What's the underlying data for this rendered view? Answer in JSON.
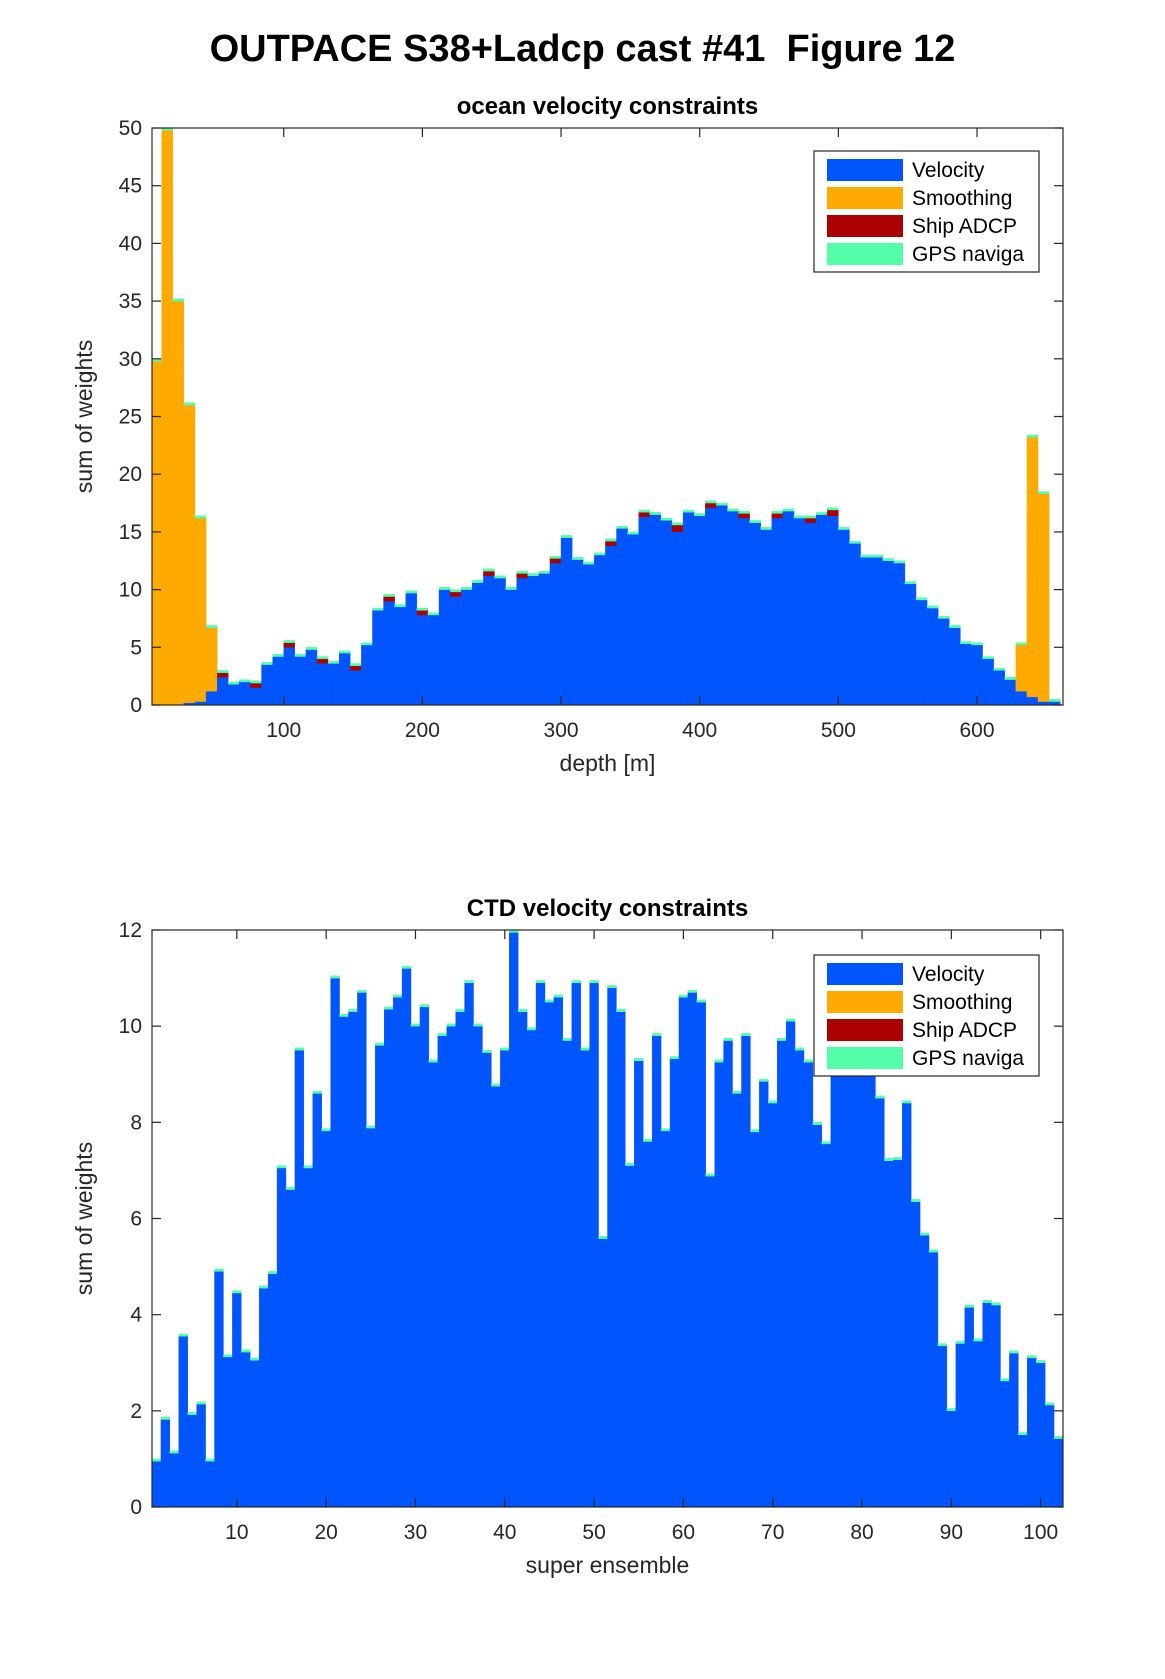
{
  "figure": {
    "title": "OUTPACE S38+Ladcp cast #41  Figure 12"
  },
  "colors": {
    "velocity": "#0055FF",
    "smoothing": "#FFAA00",
    "ship_adcp": "#AA0000",
    "gps": "#55FFAA"
  },
  "chart_data": [
    {
      "type": "bar",
      "stacked": true,
      "title": "ocean velocity constraints",
      "xlabel": "depth [m]",
      "ylabel": "sum of weights",
      "xlim": [
        5,
        662
      ],
      "ylim": [
        0,
        50
      ],
      "xticks": [
        100,
        200,
        300,
        400,
        500,
        600
      ],
      "yticks": [
        0,
        5,
        10,
        15,
        20,
        25,
        30,
        35,
        40,
        45,
        50
      ],
      "bin_width": 8,
      "x": [
        8,
        16,
        24,
        32,
        40,
        48,
        56,
        64,
        72,
        80,
        88,
        96,
        104,
        112,
        120,
        128,
        136,
        144,
        152,
        160,
        168,
        176,
        184,
        192,
        200,
        208,
        216,
        224,
        232,
        240,
        248,
        256,
        264,
        272,
        280,
        288,
        296,
        304,
        312,
        320,
        328,
        336,
        344,
        352,
        360,
        368,
        376,
        384,
        392,
        400,
        408,
        416,
        424,
        432,
        440,
        448,
        456,
        464,
        472,
        480,
        488,
        496,
        504,
        512,
        520,
        528,
        536,
        544,
        552,
        560,
        568,
        576,
        584,
        592,
        600,
        608,
        616,
        624,
        632,
        640,
        648,
        656
      ],
      "legend": {
        "position": "top-right",
        "entries": [
          "Velocity",
          "Smoothing",
          "Ship ADCP",
          "GPS naviga"
        ]
      },
      "series": [
        {
          "name": "Velocity",
          "values": [
            0,
            0,
            0,
            0.2,
            0.3,
            1.2,
            2.4,
            1.8,
            2.0,
            1.5,
            3.5,
            4.2,
            5.0,
            4.2,
            4.8,
            3.6,
            3.6,
            4.5,
            3.0,
            5.2,
            8.2,
            9.0,
            8.5,
            9.7,
            7.8,
            7.8,
            10.0,
            9.4,
            10.0,
            10.6,
            11.2,
            11.0,
            10.0,
            11.0,
            11.2,
            11.4,
            12.3,
            14.5,
            12.6,
            12.2,
            13.0,
            13.8,
            15.3,
            14.8,
            16.3,
            16.5,
            16.0,
            15.0,
            16.7,
            16.4,
            17.1,
            17.3,
            16.8,
            16.2,
            15.8,
            15.2,
            16.2,
            16.8,
            16.2,
            15.8,
            16.5,
            16.4,
            15.2,
            14.0,
            12.8,
            12.8,
            12.5,
            12.3,
            10.5,
            9.1,
            8.4,
            7.5,
            6.7,
            5.3,
            5.2,
            4.0,
            3.0,
            2.2,
            1.2,
            0.7,
            0.3,
            0.3
          ]
        },
        {
          "name": "Smoothing",
          "values": [
            29.8,
            49.8,
            35.0,
            25.8,
            15.9,
            5.5,
            0,
            0,
            0,
            0,
            0,
            0,
            0,
            0,
            0,
            0,
            0,
            0,
            0,
            0,
            0,
            0,
            0,
            0,
            0,
            0,
            0,
            0,
            0,
            0,
            0,
            0,
            0,
            0,
            0,
            0,
            0,
            0,
            0,
            0,
            0,
            0,
            0,
            0,
            0,
            0,
            0,
            0,
            0,
            0,
            0,
            0,
            0,
            0,
            0,
            0,
            0,
            0,
            0,
            0,
            0,
            0,
            0,
            0,
            0,
            0,
            0,
            0,
            0,
            0,
            0,
            0,
            0,
            0,
            0,
            0,
            0,
            0,
            4.0,
            22.5,
            18.0,
            0
          ]
        },
        {
          "name": "Ship ADCP",
          "values": [
            0,
            0,
            0,
            0,
            0,
            0,
            0.4,
            0,
            0,
            0.4,
            0,
            0,
            0.4,
            0,
            0,
            0.4,
            0,
            0,
            0.4,
            0,
            0,
            0.4,
            0,
            0,
            0.4,
            0,
            0,
            0.4,
            0,
            0,
            0.4,
            0,
            0,
            0.4,
            0,
            0,
            0.4,
            0,
            0,
            0,
            0,
            0.4,
            0,
            0,
            0.4,
            0,
            0,
            0.6,
            0,
            0,
            0.4,
            0,
            0,
            0.4,
            0,
            0,
            0.4,
            0,
            0,
            0.4,
            0,
            0.5,
            0,
            0,
            0,
            0,
            0,
            0,
            0,
            0,
            0,
            0,
            0,
            0,
            0,
            0,
            0,
            0,
            0,
            0,
            0,
            0
          ]
        },
        {
          "name": "GPS naviga",
          "values": [
            0.2,
            0.2,
            0.2,
            0.2,
            0.2,
            0.2,
            0.2,
            0.2,
            0.2,
            0.2,
            0.2,
            0.2,
            0.2,
            0.2,
            0.2,
            0.2,
            0.2,
            0.2,
            0.2,
            0.2,
            0.2,
            0.2,
            0.2,
            0.2,
            0.2,
            0.2,
            0.2,
            0.2,
            0.2,
            0.2,
            0.2,
            0.2,
            0.2,
            0.2,
            0.2,
            0.2,
            0.2,
            0.2,
            0.2,
            0.2,
            0.2,
            0.2,
            0.2,
            0.2,
            0.2,
            0.2,
            0.2,
            0.2,
            0.2,
            0.2,
            0.2,
            0.2,
            0.2,
            0.2,
            0.2,
            0.2,
            0.2,
            0.2,
            0.2,
            0.2,
            0.2,
            0.2,
            0.2,
            0.2,
            0.2,
            0.2,
            0.2,
            0.2,
            0.2,
            0.2,
            0.2,
            0.2,
            0.2,
            0.2,
            0.2,
            0.2,
            0.2,
            0.2,
            0.2,
            0.2,
            0.2,
            0.2
          ]
        }
      ]
    },
    {
      "type": "bar",
      "stacked": true,
      "title": "CTD velocity constraints",
      "xlabel": "super ensemble",
      "ylabel": "sum of weights",
      "xlim": [
        0.5,
        102.5
      ],
      "ylim": [
        0,
        12
      ],
      "xticks": [
        10,
        20,
        30,
        40,
        50,
        60,
        70,
        80,
        90,
        100
      ],
      "yticks": [
        0,
        2,
        4,
        6,
        8,
        10,
        12
      ],
      "bin_width": 1,
      "x": [
        1,
        2,
        3,
        4,
        5,
        6,
        7,
        8,
        9,
        10,
        11,
        12,
        13,
        14,
        15,
        16,
        17,
        18,
        19,
        20,
        21,
        22,
        23,
        24,
        25,
        26,
        27,
        28,
        29,
        30,
        31,
        32,
        33,
        34,
        35,
        36,
        37,
        38,
        39,
        40,
        41,
        42,
        43,
        44,
        45,
        46,
        47,
        48,
        49,
        50,
        51,
        52,
        53,
        54,
        55,
        56,
        57,
        58,
        59,
        60,
        61,
        62,
        63,
        64,
        65,
        66,
        67,
        68,
        69,
        70,
        71,
        72,
        73,
        74,
        75,
        76,
        77,
        78,
        79,
        80,
        81,
        82,
        83,
        84,
        85,
        86,
        87,
        88,
        89,
        90,
        91,
        92,
        93,
        94,
        95,
        96,
        97,
        98,
        99,
        100,
        101,
        102
      ],
      "legend": {
        "position": "top-right",
        "entries": [
          "Velocity",
          "Smoothing",
          "Ship ADCP",
          "GPS naviga"
        ]
      },
      "series": [
        {
          "name": "Velocity",
          "values": [
            0.95,
            1.82,
            1.12,
            3.55,
            1.92,
            2.14,
            0.95,
            4.9,
            3.12,
            4.45,
            3.22,
            3.05,
            4.55,
            4.85,
            7.05,
            6.6,
            9.5,
            7.05,
            8.6,
            7.82,
            11.0,
            10.2,
            10.3,
            10.7,
            7.88,
            9.6,
            10.35,
            10.6,
            11.2,
            10.0,
            10.4,
            9.25,
            9.8,
            10.0,
            10.3,
            10.9,
            10.0,
            9.45,
            8.75,
            9.5,
            11.95,
            10.3,
            9.92,
            10.9,
            10.5,
            10.6,
            9.7,
            10.9,
            9.5,
            10.9,
            5.58,
            10.8,
            10.3,
            7.1,
            9.28,
            7.6,
            9.8,
            7.82,
            9.32,
            10.6,
            10.7,
            10.5,
            6.88,
            9.25,
            9.7,
            8.6,
            9.8,
            7.8,
            8.85,
            8.4,
            9.7,
            10.1,
            9.5,
            9.25,
            7.95,
            7.55,
            9.45,
            9.1,
            9.0,
            9.3,
            9.5,
            8.5,
            7.2,
            7.22,
            8.4,
            6.35,
            5.65,
            5.3,
            3.35,
            2.0,
            3.4,
            4.15,
            3.45,
            4.25,
            4.2,
            2.62,
            3.2,
            1.5,
            3.1,
            3.0,
            2.12,
            1.42
          ]
        },
        {
          "name": "Smoothing",
          "values": [
            0,
            0,
            0,
            0,
            0,
            0,
            0,
            0,
            0,
            0,
            0,
            0,
            0,
            0,
            0,
            0,
            0,
            0,
            0,
            0,
            0,
            0,
            0,
            0,
            0,
            0,
            0,
            0,
            0,
            0,
            0,
            0,
            0,
            0,
            0,
            0,
            0,
            0,
            0,
            0,
            0,
            0,
            0,
            0,
            0,
            0,
            0,
            0,
            0,
            0,
            0,
            0,
            0,
            0,
            0,
            0,
            0,
            0,
            0,
            0,
            0,
            0,
            0,
            0,
            0,
            0,
            0,
            0,
            0,
            0,
            0,
            0,
            0,
            0,
            0,
            0,
            0,
            0,
            0,
            0,
            0,
            0,
            0,
            0,
            0,
            0,
            0,
            0,
            0,
            0,
            0,
            0,
            0,
            0,
            0,
            0,
            0,
            0,
            0,
            0,
            0,
            0
          ]
        },
        {
          "name": "Ship ADCP",
          "values": [
            0,
            0,
            0,
            0,
            0,
            0,
            0,
            0,
            0,
            0,
            0,
            0,
            0,
            0,
            0,
            0,
            0,
            0,
            0,
            0,
            0,
            0,
            0,
            0,
            0,
            0,
            0,
            0,
            0,
            0,
            0,
            0,
            0,
            0,
            0,
            0,
            0,
            0,
            0,
            0,
            0,
            0,
            0,
            0,
            0,
            0,
            0,
            0,
            0,
            0,
            0,
            0,
            0,
            0,
            0,
            0,
            0,
            0,
            0,
            0,
            0,
            0,
            0,
            0,
            0,
            0,
            0,
            0,
            0,
            0,
            0,
            0,
            0,
            0,
            0,
            0,
            0,
            0,
            0,
            0,
            0,
            0,
            0,
            0,
            0,
            0,
            0,
            0,
            0,
            0,
            0,
            0,
            0,
            0,
            0,
            0,
            0,
            0,
            0,
            0,
            0,
            0
          ]
        },
        {
          "name": "GPS naviga",
          "values": [
            0.05,
            0.05,
            0.05,
            0.05,
            0.05,
            0.05,
            0.05,
            0.05,
            0.05,
            0.05,
            0.05,
            0.05,
            0.05,
            0.05,
            0.05,
            0.05,
            0.05,
            0.05,
            0.05,
            0.05,
            0.05,
            0.05,
            0.05,
            0.05,
            0.05,
            0.05,
            0.05,
            0.05,
            0.05,
            0.05,
            0.05,
            0.05,
            0.05,
            0.05,
            0.05,
            0.05,
            0.05,
            0.05,
            0.05,
            0.05,
            0.05,
            0.05,
            0.05,
            0.05,
            0.05,
            0.05,
            0.05,
            0.05,
            0.05,
            0.05,
            0.05,
            0.05,
            0.05,
            0.05,
            0.05,
            0.05,
            0.05,
            0.05,
            0.05,
            0.05,
            0.05,
            0.05,
            0.05,
            0.05,
            0.05,
            0.05,
            0.05,
            0.05,
            0.05,
            0.05,
            0.05,
            0.05,
            0.05,
            0.05,
            0.05,
            0.05,
            0.05,
            0.05,
            0.05,
            0.05,
            0.05,
            0.05,
            0.05,
            0.05,
            0.05,
            0.05,
            0.05,
            0.05,
            0.05,
            0.05,
            0.05,
            0.05,
            0.05,
            0.05,
            0.05,
            0.05,
            0.05,
            0.05,
            0.05,
            0.05,
            0.05,
            0.05
          ]
        }
      ]
    }
  ]
}
